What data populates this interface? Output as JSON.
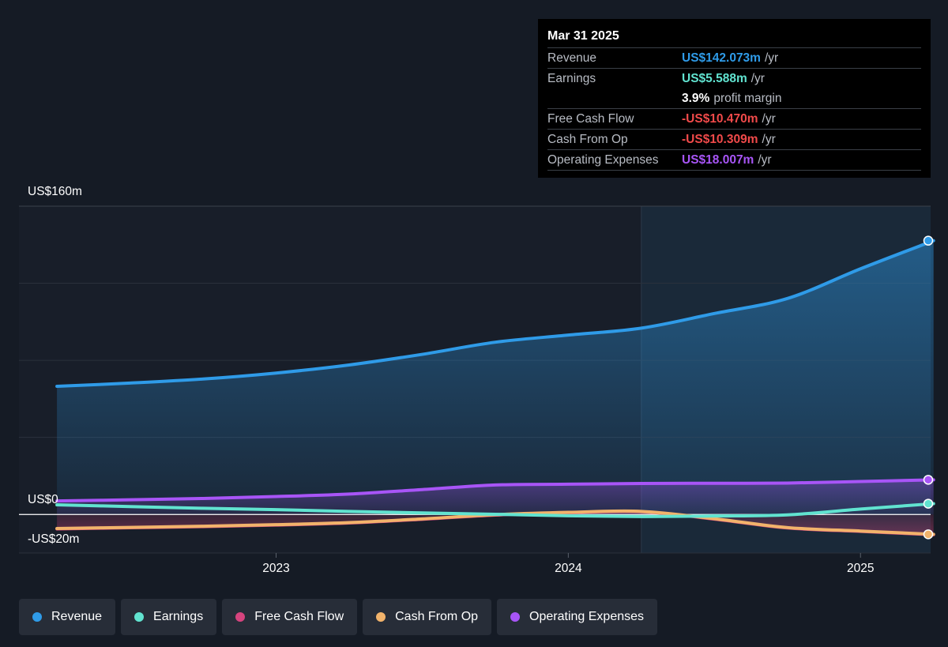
{
  "tooltip": {
    "date": "Mar 31 2025",
    "rows": [
      {
        "label": "Revenue",
        "value": "US$142.073m",
        "unit": "/yr",
        "color": "#2f9be8"
      },
      {
        "label": "Earnings",
        "value": "US$5.588m",
        "unit": "/yr",
        "color": "#61e3d0"
      },
      {
        "label": "",
        "value": "3.9%",
        "unit": "profit margin",
        "color": "#ffffff"
      },
      {
        "label": "Free Cash Flow",
        "value": "-US$10.470m",
        "unit": "/yr",
        "color": "#f04a4a"
      },
      {
        "label": "Cash From Op",
        "value": "-US$10.309m",
        "unit": "/yr",
        "color": "#f04a4a"
      },
      {
        "label": "Operating Expenses",
        "value": "US$18.007m",
        "unit": "/yr",
        "color": "#a855f7"
      }
    ]
  },
  "chart_data": {
    "type": "line",
    "ylim": [
      -20,
      160
    ],
    "y_tick_labels": [
      "US$160m",
      "US$0",
      "-US$20m"
    ],
    "x_tick_labels": [
      "2023",
      "2024",
      "2025"
    ],
    "x_ticks": [
      2023.0,
      2024.0,
      2025.0
    ],
    "xlim": [
      2022.12,
      2025.24
    ],
    "highlight_from": 2024.25,
    "grid": true,
    "legend_position": "bottom",
    "series": [
      {
        "name": "Revenue",
        "color": "#2f9be8",
        "area": true,
        "x": [
          2022.25,
          2022.5,
          2022.75,
          2023.0,
          2023.25,
          2023.5,
          2023.75,
          2024.0,
          2024.25,
          2024.5,
          2024.75,
          2025.0,
          2025.25
        ],
        "y": [
          66.5,
          68.2,
          70.3,
          73.4,
          77.6,
          83.1,
          89.4,
          93.1,
          96.7,
          104.3,
          112.1,
          127.5,
          142.1
        ]
      },
      {
        "name": "Earnings",
        "color": "#61e3d0",
        "area": false,
        "x": [
          2022.25,
          2022.5,
          2022.75,
          2023.0,
          2023.25,
          2023.5,
          2023.75,
          2024.0,
          2024.25,
          2024.5,
          2024.75,
          2025.0,
          2025.25
        ],
        "y": [
          5.0,
          4.1,
          3.2,
          2.5,
          1.6,
          0.8,
          0.1,
          -0.7,
          -1.1,
          -0.8,
          -0.2,
          2.8,
          5.6
        ]
      },
      {
        "name": "Free Cash Flow",
        "color": "#d6447e",
        "area": true,
        "x": [
          2022.25,
          2022.5,
          2022.75,
          2023.0,
          2023.25,
          2023.5,
          2023.75,
          2024.0,
          2024.25,
          2024.5,
          2024.75,
          2025.0,
          2025.25
        ],
        "y": [
          -7.5,
          -6.9,
          -6.3,
          -5.5,
          -4.4,
          -2.5,
          -0.3,
          0.9,
          1.4,
          -2.4,
          -7.0,
          -8.8,
          -10.5
        ]
      },
      {
        "name": "Cash From Op",
        "color": "#f2b36b",
        "area": false,
        "x": [
          2022.25,
          2022.5,
          2022.75,
          2023.0,
          2023.25,
          2023.5,
          2023.75,
          2024.0,
          2024.25,
          2024.5,
          2024.75,
          2025.0,
          2025.25
        ],
        "y": [
          -7.3,
          -6.7,
          -6.1,
          -5.3,
          -4.2,
          -2.3,
          -0.1,
          1.1,
          1.6,
          -2.2,
          -6.8,
          -8.6,
          -10.3
        ]
      },
      {
        "name": "Operating Expenses",
        "color": "#a855f7",
        "area": true,
        "x": [
          2022.25,
          2022.5,
          2022.75,
          2023.0,
          2023.25,
          2023.5,
          2023.75,
          2024.0,
          2024.25,
          2024.5,
          2024.75,
          2025.0,
          2025.25
        ],
        "y": [
          7.0,
          7.6,
          8.3,
          9.3,
          10.6,
          12.9,
          15.3,
          15.7,
          16.1,
          16.2,
          16.3,
          17.1,
          18.0
        ]
      }
    ]
  }
}
